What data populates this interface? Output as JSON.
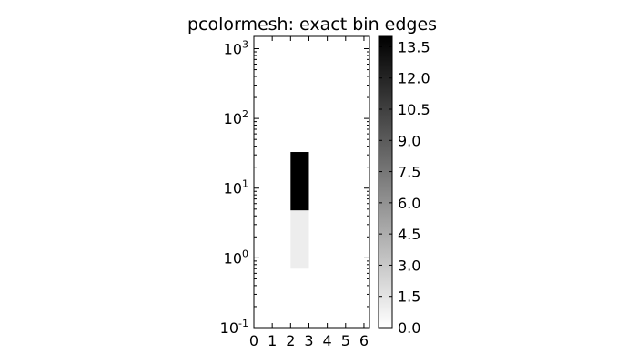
{
  "chart_data": {
    "type": "heatmap",
    "title": "pcolormesh: exact bin edges",
    "xlabel": "",
    "ylabel": "",
    "x_edges": [
      0,
      1,
      2,
      3,
      4,
      5,
      6,
      6.3
    ],
    "xlim": [
      0,
      6.3
    ],
    "x_ticks": [
      {
        "value": 0,
        "label": "0"
      },
      {
        "value": 1,
        "label": "1"
      },
      {
        "value": 2,
        "label": "2"
      },
      {
        "value": 3,
        "label": "3"
      },
      {
        "value": 4,
        "label": "4"
      },
      {
        "value": 5,
        "label": "5"
      },
      {
        "value": 6,
        "label": "6"
      }
    ],
    "y_scale": "log",
    "ylim": [
      0.1,
      1500
    ],
    "y_ticks": [
      {
        "value": 0.1,
        "base": "10",
        "exp": "-1"
      },
      {
        "value": 1,
        "base": "10",
        "exp": "0"
      },
      {
        "value": 10,
        "base": "10",
        "exp": "1"
      },
      {
        "value": 100,
        "base": "10",
        "exp": "2"
      },
      {
        "value": 1000,
        "base": "10",
        "exp": "3"
      }
    ],
    "cells": [
      {
        "x0": 2,
        "x1": 3,
        "y0": 0.7,
        "y1": 4.8,
        "value": 1
      },
      {
        "x0": 2,
        "x1": 3,
        "y0": 4.8,
        "y1": 33,
        "value": 14
      }
    ],
    "colorbar": {
      "colormap": "Greys",
      "vmin": 0,
      "vmax": 14,
      "color_low": "#ffffff",
      "color_high": "#000000",
      "ticks": [
        {
          "value": 0.0,
          "label": "0.0"
        },
        {
          "value": 1.5,
          "label": "1.5"
        },
        {
          "value": 3.0,
          "label": "3.0"
        },
        {
          "value": 4.5,
          "label": "4.5"
        },
        {
          "value": 6.0,
          "label": "6.0"
        },
        {
          "value": 7.5,
          "label": "7.5"
        },
        {
          "value": 9.0,
          "label": "9.0"
        },
        {
          "value": 10.5,
          "label": "10.5"
        },
        {
          "value": 12.0,
          "label": "12.0"
        },
        {
          "value": 13.5,
          "label": "13.5"
        }
      ]
    },
    "grid": false,
    "legend": "none"
  }
}
